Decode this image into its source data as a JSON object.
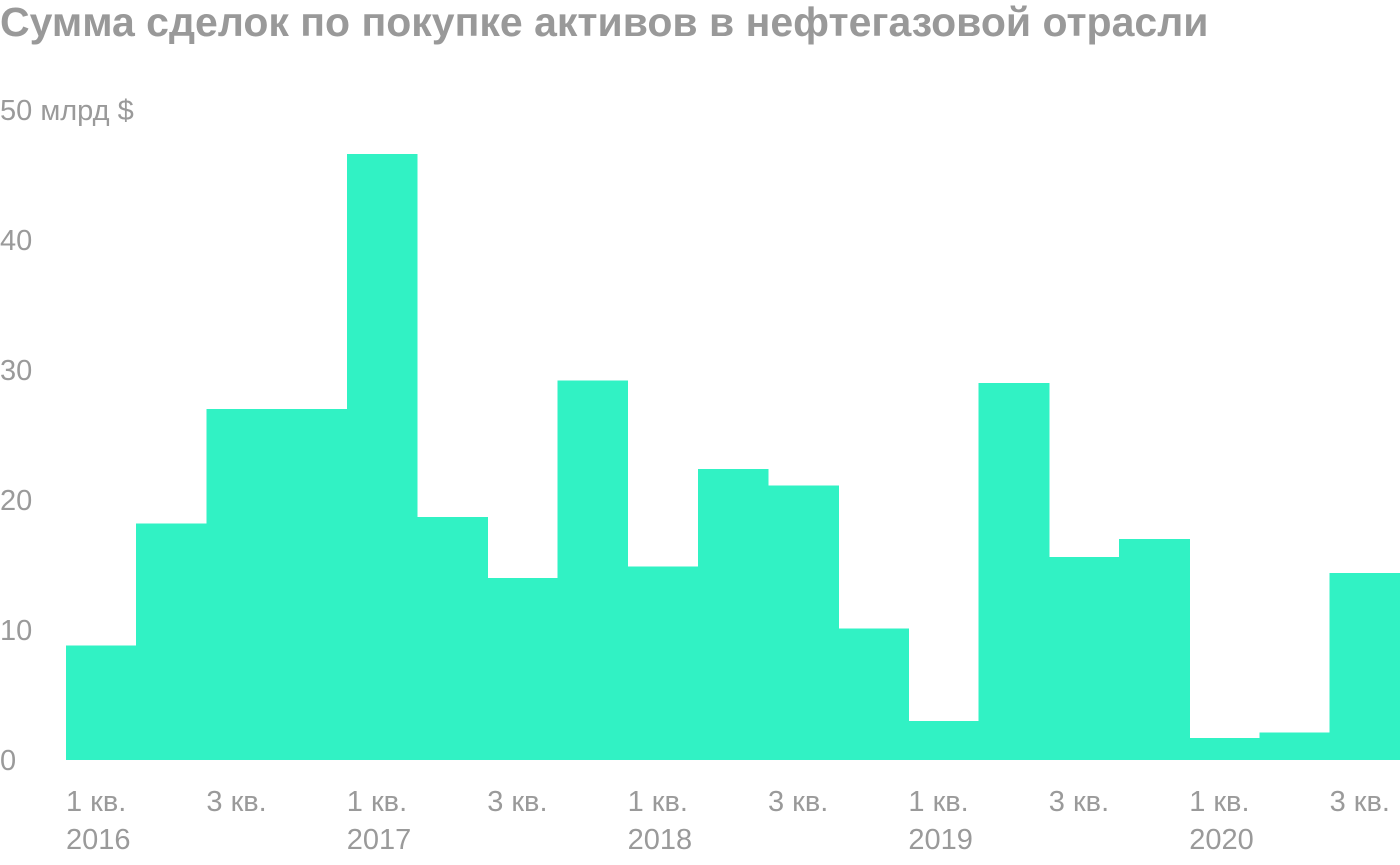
{
  "chart_data": {
    "type": "bar",
    "title": "Сумма сделок по покупке активов в нефтегазовой отрасли",
    "ylabel": "",
    "y_unit_label": "50 млрд $",
    "ylim": [
      0,
      50
    ],
    "yticks": [
      {
        "value": 0,
        "label": "0"
      },
      {
        "value": 10,
        "label": "10"
      },
      {
        "value": 20,
        "label": "20"
      },
      {
        "value": 30,
        "label": "30"
      },
      {
        "value": 40,
        "label": "40"
      },
      {
        "value": 50,
        "label": "50 млрд $"
      }
    ],
    "categories": [
      "1 кв. 2016",
      "2 кв. 2016",
      "3 кв. 2016",
      "4 кв. 2016",
      "1 кв. 2017",
      "2 кв. 2017",
      "3 кв. 2017",
      "4 кв. 2017",
      "1 кв. 2018",
      "2 кв. 2018",
      "3 кв. 2018",
      "4 кв. 2018",
      "1 кв. 2019",
      "2 кв. 2019",
      "3 кв. 2019",
      "4 кв. 2019",
      "1 кв. 2020",
      "2 кв. 2020",
      "3 кв. 2020"
    ],
    "values": [
      8.8,
      18.2,
      27.0,
      27.0,
      46.6,
      18.7,
      14.0,
      29.2,
      14.9,
      22.4,
      21.1,
      10.1,
      3.0,
      29.0,
      15.6,
      17.0,
      1.7,
      2.1,
      14.4
    ],
    "xtick_labels": [
      {
        "index": 0,
        "line1": "1 кв.",
        "line2": "2016"
      },
      {
        "index": 2,
        "line1": "3 кв.",
        "line2": ""
      },
      {
        "index": 4,
        "line1": "1 кв.",
        "line2": "2017"
      },
      {
        "index": 6,
        "line1": "3 кв.",
        "line2": ""
      },
      {
        "index": 8,
        "line1": "1 кв.",
        "line2": "2018"
      },
      {
        "index": 10,
        "line1": "3 кв.",
        "line2": ""
      },
      {
        "index": 12,
        "line1": "1 кв.",
        "line2": "2019"
      },
      {
        "index": 14,
        "line1": "3 кв.",
        "line2": ""
      },
      {
        "index": 16,
        "line1": "1 кв.",
        "line2": "2020"
      },
      {
        "index": 18,
        "line1": "3 кв.",
        "line2": ""
      }
    ],
    "bar_color": "#31f2c4",
    "text_color": "#999999",
    "grid": false,
    "legend": "none"
  }
}
